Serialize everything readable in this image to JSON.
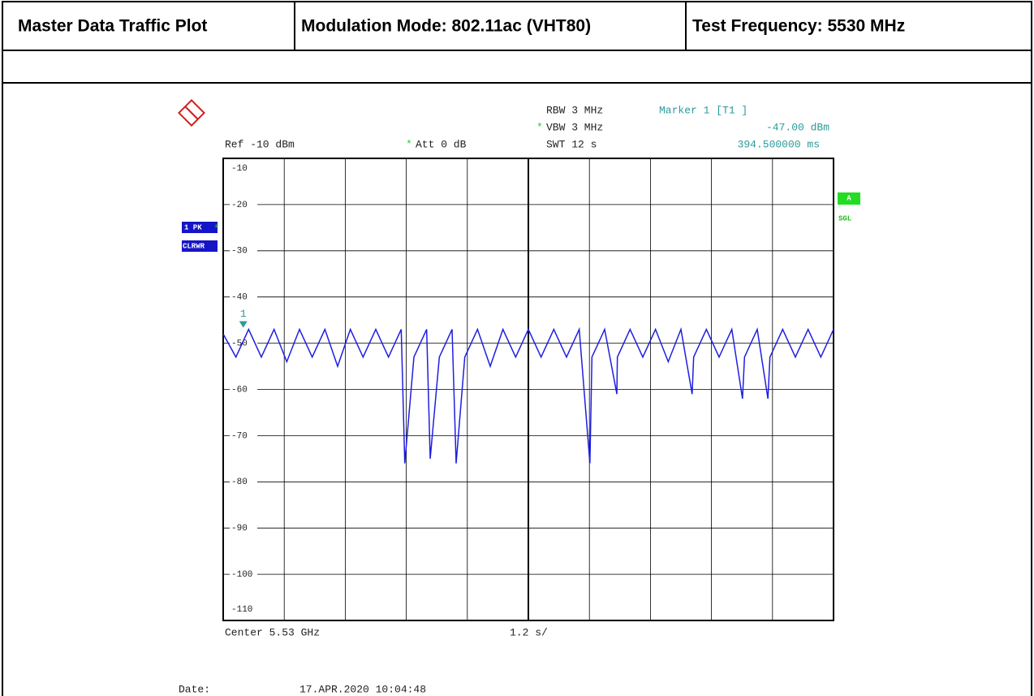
{
  "header": [
    "Master Data Traffic Plot",
    "Modulation Mode: 802.11ac (VHT80)",
    "Test Frequency: 5530 MHz"
  ],
  "chart_data": {
    "type": "line",
    "settings": {
      "rbw": "RBW 3 MHz",
      "vbw": "VBW 3 MHz",
      "swt": "SWT 12 s",
      "ref": "Ref -10 dBm",
      "att": "Att  0 dB"
    },
    "marker_readout": {
      "title": "Marker 1 [T1 ]",
      "level": "-47.00 dBm",
      "time": "394.500000 ms"
    },
    "trace_labels": {
      "detector": "1 PK",
      "mode": "CLRWR",
      "trace": "A",
      "sweep": "SGL"
    },
    "x_label": "Center 5.53 GHz",
    "x_div": "1.2 s/",
    "date_label": "Date:",
    "date": "17.APR.2020  10:04:48",
    "markers": [
      {
        "name": "1",
        "x": 0.3945,
        "y": -47
      }
    ],
    "xlim": [
      0,
      12
    ],
    "ylim": [
      -110,
      -10
    ],
    "yticks": [
      -10,
      -20,
      -30,
      -40,
      -50,
      -60,
      -70,
      -80,
      -90,
      -100,
      -110
    ],
    "grid": true,
    "series": [
      {
        "color": "#1f1fe0",
        "x": [
          0,
          0.25,
          0.5,
          0.75,
          1,
          1.25,
          1.5,
          1.75,
          2,
          2.25,
          2.5,
          2.75,
          3,
          3.25,
          3.5,
          3.57,
          3.75,
          4,
          4.07,
          4.25,
          4.5,
          4.58,
          4.75,
          5,
          5.25,
          5.5,
          5.75,
          6,
          6.25,
          6.5,
          6.75,
          7,
          7.21,
          7.25,
          7.5,
          7.74,
          7.75,
          8,
          8.25,
          8.5,
          8.75,
          9,
          9.22,
          9.25,
          9.5,
          9.75,
          10,
          10.21,
          10.25,
          10.5,
          10.71,
          10.75,
          11,
          11.25,
          11.5,
          11.75,
          12
        ],
        "values": [
          -48,
          -53,
          -47,
          -53,
          -47,
          -54,
          -47,
          -53,
          -47,
          -55,
          -47,
          -53,
          -47,
          -53,
          -47,
          -76,
          -53,
          -47,
          -75,
          -53,
          -47,
          -76,
          -53,
          -47,
          -55,
          -47,
          -53,
          -47,
          -53,
          -47,
          -53,
          -47,
          -76,
          -53,
          -47,
          -61,
          -53,
          -47,
          -53,
          -47,
          -54,
          -47,
          -61,
          -53,
          -47,
          -53,
          -47,
          -62,
          -53,
          -47,
          -62,
          -53,
          -47,
          -53,
          -47,
          -53,
          -47
        ]
      }
    ]
  }
}
